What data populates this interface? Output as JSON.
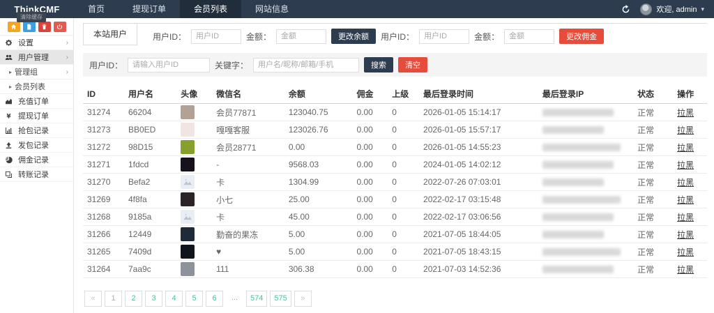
{
  "colors": {
    "navbar_bg": "#2e3c50",
    "navbar_active_bg": "#222d3b",
    "dark_button": "#2e3c50",
    "red_button": "#e64c3c",
    "pagination_accent": "#4cc2a0",
    "searchbar_bg": "#f4f4f4"
  },
  "navbar": {
    "logo": "ThinkCMF",
    "logo_tooltip": "清除缓存",
    "items": [
      {
        "label": "首页",
        "active": false
      },
      {
        "label": "提现订单",
        "active": false
      },
      {
        "label": "会员列表",
        "active": true
      },
      {
        "label": "网站信息",
        "active": false
      }
    ],
    "welcome": "欢迎, admin"
  },
  "sidebar": {
    "quick_buttons": [
      {
        "icon": "home-icon",
        "color": "#f5a623"
      },
      {
        "icon": "file-icon",
        "color": "#3c9fe0"
      },
      {
        "icon": "trash-icon",
        "color": "#d9453a"
      },
      {
        "icon": "power-icon",
        "color": "#e25b52"
      }
    ],
    "items": [
      {
        "label": "设置",
        "icon": "gear-icon",
        "chevron": true,
        "level": 0,
        "open": false
      },
      {
        "label": "用户管理",
        "icon": "users-icon",
        "chevron": true,
        "level": 0,
        "open": true
      },
      {
        "label": "管理组",
        "icon": null,
        "chevron": true,
        "level": 1,
        "open": false
      },
      {
        "label": "会员列表",
        "icon": null,
        "chevron": false,
        "level": 1,
        "open": false
      },
      {
        "label": "充值订单",
        "icon": "area-chart-icon",
        "chevron": false,
        "level": 0,
        "open": false
      },
      {
        "label": "提现订单",
        "icon": "yen-icon",
        "chevron": false,
        "level": 0,
        "open": false
      },
      {
        "label": "抢包记录",
        "icon": "bar-chart-icon",
        "chevron": false,
        "level": 0,
        "open": false
      },
      {
        "label": "发包记录",
        "icon": "upload-icon",
        "chevron": false,
        "level": 0,
        "open": false
      },
      {
        "label": "佣金记录",
        "icon": "pie-chart-icon",
        "chevron": false,
        "level": 0,
        "open": false
      },
      {
        "label": "转账记录",
        "icon": "transfer-icon",
        "chevron": false,
        "level": 0,
        "open": false
      }
    ]
  },
  "toolbar": {
    "tab": "本站用户",
    "balance_form": {
      "user_id_label": "用户ID：",
      "user_id_placeholder": "用户ID",
      "amount_label": "金额：",
      "amount_placeholder": "金额",
      "submit_label": "更改余额"
    },
    "commission_form": {
      "user_id_label": "用户ID：",
      "user_id_placeholder": "用户ID",
      "amount_label": "金额：",
      "amount_placeholder": "金额",
      "submit_label": "更改佣金"
    }
  },
  "search": {
    "user_id_label": "用户ID：",
    "user_id_placeholder": "请输入用户ID",
    "keyword_label": "关键字：",
    "keyword_placeholder": "用户名/昵称/邮箱/手机",
    "search_label": "搜索",
    "clear_label": "清空"
  },
  "table": {
    "headers": [
      "ID",
      "用户名",
      "头像",
      "微信名",
      "余额",
      "佣金",
      "上级",
      "最后登录时间",
      "最后登录IP",
      "状态",
      "操作"
    ],
    "rows": [
      {
        "id": "31274",
        "username": "66204",
        "avatar_color": "#b3a294",
        "avatar_placeholder": false,
        "wechat": "会员77871",
        "balance": "123040.75",
        "commission": "0.00",
        "parent": "0",
        "last_login": "2026-01-05 15:14:17",
        "ip_redacted": true,
        "status": "正常",
        "action": "拉黑"
      },
      {
        "id": "31273",
        "username": "BB0ED",
        "avatar_color": "#f1e5e3",
        "avatar_placeholder": false,
        "wechat": "嘎嘎客服",
        "balance": "123026.76",
        "commission": "0.00",
        "parent": "0",
        "last_login": "2026-01-05 15:57:17",
        "ip_redacted": true,
        "status": "正常",
        "action": "拉黑"
      },
      {
        "id": "31272",
        "username": "98D15",
        "avatar_color": "#85a02c",
        "avatar_placeholder": false,
        "wechat": "会员28771",
        "balance": "0.00",
        "commission": "0.00",
        "parent": "0",
        "last_login": "2026-01-05 14:55:23",
        "ip_redacted": true,
        "status": "正常",
        "action": "拉黑"
      },
      {
        "id": "31271",
        "username": "1fdcd",
        "avatar_color": "#17111d",
        "avatar_placeholder": false,
        "wechat": "-",
        "balance": "9568.03",
        "commission": "0.00",
        "parent": "0",
        "last_login": "2024-01-05 14:02:12",
        "ip_redacted": true,
        "status": "正常",
        "action": "拉黑"
      },
      {
        "id": "31270",
        "username": "Befa2",
        "avatar_color": "#e8eef3",
        "avatar_placeholder": true,
        "wechat": "卡",
        "balance": "1304.99",
        "commission": "0.00",
        "parent": "0",
        "last_login": "2022-07-26 07:03:01",
        "ip_redacted": true,
        "status": "正常",
        "action": "拉黑"
      },
      {
        "id": "31269",
        "username": "4f8fa",
        "avatar_color": "#2b2327",
        "avatar_placeholder": false,
        "wechat": "小七",
        "balance": "25.00",
        "commission": "0.00",
        "parent": "0",
        "last_login": "2022-02-17 03:15:48",
        "ip_redacted": true,
        "status": "正常",
        "action": "拉黑"
      },
      {
        "id": "31268",
        "username": "9185a",
        "avatar_color": "#e8eef3",
        "avatar_placeholder": true,
        "wechat": "卡",
        "balance": "45.00",
        "commission": "0.00",
        "parent": "0",
        "last_login": "2022-02-17 03:06:56",
        "ip_redacted": true,
        "status": "正常",
        "action": "拉黑"
      },
      {
        "id": "31266",
        "username": "12449",
        "avatar_color": "#1f2a39",
        "avatar_placeholder": false,
        "wechat": "勤奋的果冻",
        "balance": "5.00",
        "commission": "0.00",
        "parent": "0",
        "last_login": "2021-07-05 18:44:05",
        "ip_redacted": true,
        "status": "正常",
        "action": "拉黑"
      },
      {
        "id": "31265",
        "username": "7409d",
        "avatar_color": "#10141b",
        "avatar_placeholder": false,
        "wechat": "♥",
        "balance": "5.00",
        "commission": "0.00",
        "parent": "0",
        "last_login": "2021-07-05 18:43:15",
        "ip_redacted": true,
        "status": "正常",
        "action": "拉黑"
      },
      {
        "id": "31264",
        "username": "7aa9c",
        "avatar_color": "#8c939a",
        "avatar_placeholder": false,
        "wechat": "111",
        "balance": "306.38",
        "commission": "0.00",
        "parent": "0",
        "last_login": "2021-07-03 14:52:36",
        "ip_redacted": true,
        "status": "正常",
        "action": "拉黑"
      }
    ]
  },
  "pagination": {
    "items": [
      {
        "label": "«",
        "type": "arrow"
      },
      {
        "label": "1",
        "type": "current"
      },
      {
        "label": "2",
        "type": "num"
      },
      {
        "label": "3",
        "type": "num"
      },
      {
        "label": "4",
        "type": "num"
      },
      {
        "label": "5",
        "type": "num"
      },
      {
        "label": "6",
        "type": "num"
      },
      {
        "label": "...",
        "type": "ellipsis"
      },
      {
        "label": "574",
        "type": "num"
      },
      {
        "label": "575",
        "type": "num"
      },
      {
        "label": "»",
        "type": "arrow"
      }
    ]
  }
}
